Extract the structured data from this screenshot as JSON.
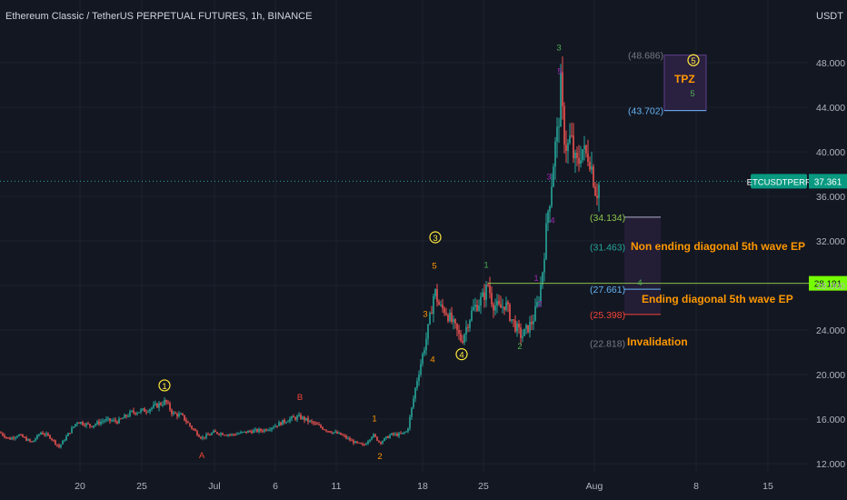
{
  "header": {
    "title": "Ethereum Classic / TetherUS PERPETUAL FUTURES, 1h, BINANCE",
    "currency": "USDT"
  },
  "colors": {
    "background": "#131722",
    "up_candle": "#26a69a",
    "down_candle": "#ef5350",
    "grid": "#1e222d",
    "axis_text": "#b2b5be",
    "wave_orange": "#ff9800",
    "wave_green": "#4caf50",
    "wave_purple": "#9c27b0",
    "wave_red": "#f44336",
    "circle_yellow": "#ffeb3b",
    "level_green": "#8bc34a",
    "level_blue": "#64b5f6",
    "zone_fill": "#2a2040"
  },
  "chart_data": {
    "type": "candlestick",
    "x_ticks": [
      "20",
      "25",
      "Jul",
      "6",
      "11",
      "18",
      "25",
      "Aug",
      "8",
      "15"
    ],
    "y_ticks": [
      "48.000",
      "44.000",
      "40.000",
      "36.000",
      "32.000",
      "28.000",
      "24.000",
      "20.000",
      "16.000",
      "12.000"
    ],
    "ylim": [
      11,
      51
    ],
    "price_path": [
      [
        0,
        14.8
      ],
      [
        10,
        14.2
      ],
      [
        20,
        14.6
      ],
      [
        35,
        13.9
      ],
      [
        45,
        14.8
      ],
      [
        55,
        14.4
      ],
      [
        65,
        13.5
      ],
      [
        72,
        14.3
      ],
      [
        85,
        15.8
      ],
      [
        100,
        15.4
      ],
      [
        115,
        15.9
      ],
      [
        130,
        15.8
      ],
      [
        145,
        16.6
      ],
      [
        160,
        16.8
      ],
      [
        172,
        17.2
      ],
      [
        182,
        17.6
      ],
      [
        190,
        16.5
      ],
      [
        200,
        16.3
      ],
      [
        210,
        15.3
      ],
      [
        222,
        14.3
      ],
      [
        235,
        14.8
      ],
      [
        255,
        14.6
      ],
      [
        275,
        14.9
      ],
      [
        290,
        15.0
      ],
      [
        305,
        15.5
      ],
      [
        318,
        16.0
      ],
      [
        330,
        16.2
      ],
      [
        345,
        15.6
      ],
      [
        360,
        15.0
      ],
      [
        375,
        14.6
      ],
      [
        390,
        13.9
      ],
      [
        400,
        13.6
      ],
      [
        410,
        14.6
      ],
      [
        418,
        13.9
      ],
      [
        430,
        14.6
      ],
      [
        440,
        14.6
      ],
      [
        448,
        14.9
      ],
      [
        452,
        16.5
      ],
      [
        458,
        19.2
      ],
      [
        464,
        21.4
      ],
      [
        470,
        23.6
      ],
      [
        474,
        25.5
      ],
      [
        478,
        27.6
      ],
      [
        484,
        26.0
      ],
      [
        490,
        25.8
      ],
      [
        496,
        24.9
      ],
      [
        502,
        24.0
      ],
      [
        508,
        23.0
      ],
      [
        514,
        24.5
      ],
      [
        520,
        25.8
      ],
      [
        526,
        26.4
      ],
      [
        532,
        27.0
      ],
      [
        537,
        28.1
      ],
      [
        542,
        26.4
      ],
      [
        550,
        25.9
      ],
      [
        556,
        26.4
      ],
      [
        562,
        25.1
      ],
      [
        568,
        24.2
      ],
      [
        574,
        23.4
      ],
      [
        580,
        24.1
      ],
      [
        586,
        24.8
      ],
      [
        592,
        26.5
      ],
      [
        596,
        28.5
      ],
      [
        600,
        32.0
      ],
      [
        603,
        34.7
      ],
      [
        606,
        36.5
      ],
      [
        610,
        40.0
      ],
      [
        614,
        42.0
      ],
      [
        617,
        45.8
      ],
      [
        620,
        41.9
      ],
      [
        624,
        40.2
      ],
      [
        628,
        41.4
      ],
      [
        632,
        39.1
      ],
      [
        636,
        38.8
      ],
      [
        640,
        40.5
      ],
      [
        644,
        39.6
      ],
      [
        648,
        39.9
      ],
      [
        652,
        38.2
      ],
      [
        656,
        36.2
      ],
      [
        660,
        37.3
      ]
    ],
    "current_price": {
      "label": "ETCUSDTPERP",
      "value": "37.361",
      "y": 37.361
    },
    "level_badge": {
      "value": "28.191",
      "y": 28.191
    },
    "fib_levels": [
      {
        "text": "(48.686)",
        "y": 48.686,
        "color": "#787b86"
      },
      {
        "text": "(43.702)",
        "y": 43.702,
        "color": "#64b5f6"
      },
      {
        "text": "(34.134)",
        "y": 34.134,
        "color": "#8bc34a"
      },
      {
        "text": "(31.463)",
        "y": 31.463,
        "color": "#26a69a"
      },
      {
        "text": "(27.661)",
        "y": 27.661,
        "color": "#64b5f6"
      },
      {
        "text": "(25.398)",
        "y": 25.398,
        "color": "#f44336"
      },
      {
        "text": "(22.818)",
        "y": 22.818,
        "color": "#787b86"
      }
    ],
    "annotations": {
      "tpz": "TPZ",
      "non_ending": "Non ending diagonal 5th wave EP",
      "ending": "Ending diagonal 5th wave EP",
      "invalidation": "Invalidation"
    },
    "wave_labels": [
      {
        "text": "1",
        "x": 181,
        "y": 18.7,
        "color": "#ffeb3b",
        "circle": true
      },
      {
        "text": "A",
        "x": 222,
        "y": 12.5,
        "color": "#f44336"
      },
      {
        "text": "B",
        "x": 330,
        "y": 17.7,
        "color": "#f44336"
      },
      {
        "text": "1",
        "x": 412,
        "y": 15.8,
        "color": "#ff9800"
      },
      {
        "text": "2",
        "x": 418,
        "y": 12.4,
        "color": "#ff9800"
      },
      {
        "text": "3",
        "x": 468,
        "y": 25.2,
        "color": "#ff9800"
      },
      {
        "text": "4",
        "x": 476,
        "y": 21.1,
        "color": "#ff9800"
      },
      {
        "text": "5",
        "x": 478,
        "y": 29.5,
        "color": "#ff9800"
      },
      {
        "text": "3",
        "x": 479,
        "y": 32.0,
        "color": "#ffeb3b",
        "circle": true
      },
      {
        "text": "4",
        "x": 508,
        "y": 21.5,
        "color": "#ffeb3b",
        "circle": true
      },
      {
        "text": "1",
        "x": 535,
        "y": 29.6,
        "color": "#4caf50"
      },
      {
        "text": "2",
        "x": 572,
        "y": 22.3,
        "color": "#4caf50"
      },
      {
        "text": "1",
        "x": 590,
        "y": 28.4,
        "color": "#9c27b0"
      },
      {
        "text": "2",
        "x": 594,
        "y": 26.1,
        "color": "#9c27b0"
      },
      {
        "text": "3",
        "x": 604,
        "y": 37.5,
        "color": "#9c27b0"
      },
      {
        "text": "4",
        "x": 608,
        "y": 33.6,
        "color": "#9c27b0"
      },
      {
        "text": "5",
        "x": 616,
        "y": 47.0,
        "color": "#9c27b0"
      },
      {
        "text": "3",
        "x": 615,
        "y": 49.1,
        "color": "#4caf50"
      },
      {
        "text": "4",
        "x": 704,
        "y": 28.0,
        "color": "#4caf50"
      },
      {
        "text": "5",
        "x": 762,
        "y": 45.0,
        "color": "#4caf50"
      },
      {
        "text": "5",
        "x": 763,
        "y": 47.9,
        "color": "#ffeb3b",
        "circle": true
      }
    ]
  }
}
